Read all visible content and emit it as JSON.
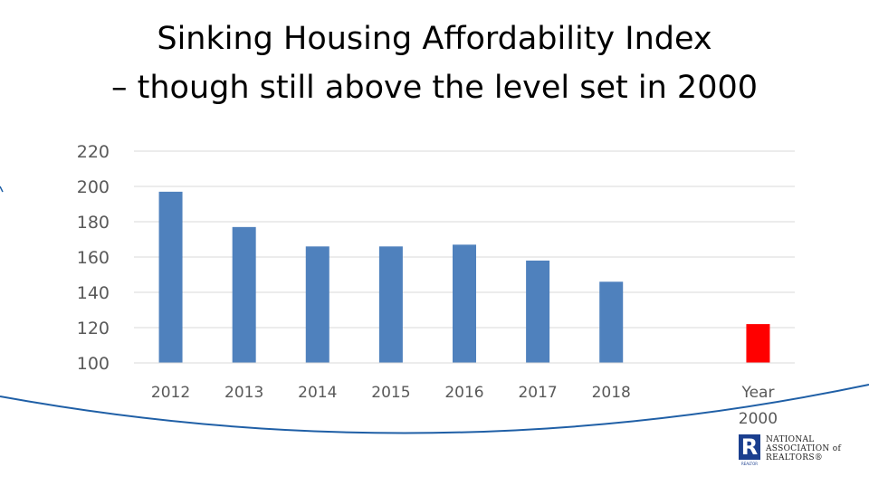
{
  "slide": {
    "title_line1": "Sinking Housing Affordability Index",
    "title_line2": "– though still above the level set in 2000"
  },
  "colors": {
    "bar": "#4f81bd",
    "highlight_bar": "#ff0000",
    "gridline": "#d9d9d9",
    "arc": "#1f5fa6"
  },
  "chart_data": {
    "type": "bar",
    "categories": [
      "2012",
      "2013",
      "2014",
      "2015",
      "2016",
      "2017",
      "2018",
      "",
      "Year 2000"
    ],
    "values": [
      197,
      177,
      166,
      166,
      167,
      158,
      146,
      null,
      122
    ],
    "highlight_index": 8,
    "ylim": [
      100,
      220
    ],
    "yticks": [
      100,
      120,
      140,
      160,
      180,
      200,
      220
    ],
    "title": "Sinking Housing Affordability Index",
    "xlabel": "",
    "ylabel": "",
    "grid": true,
    "legend": "none"
  },
  "logo": {
    "mark": "R",
    "mark_sub": "REALTOR",
    "line1": "NATIONAL",
    "line2": "ASSOCIATION of",
    "line3": "REALTORS®"
  }
}
